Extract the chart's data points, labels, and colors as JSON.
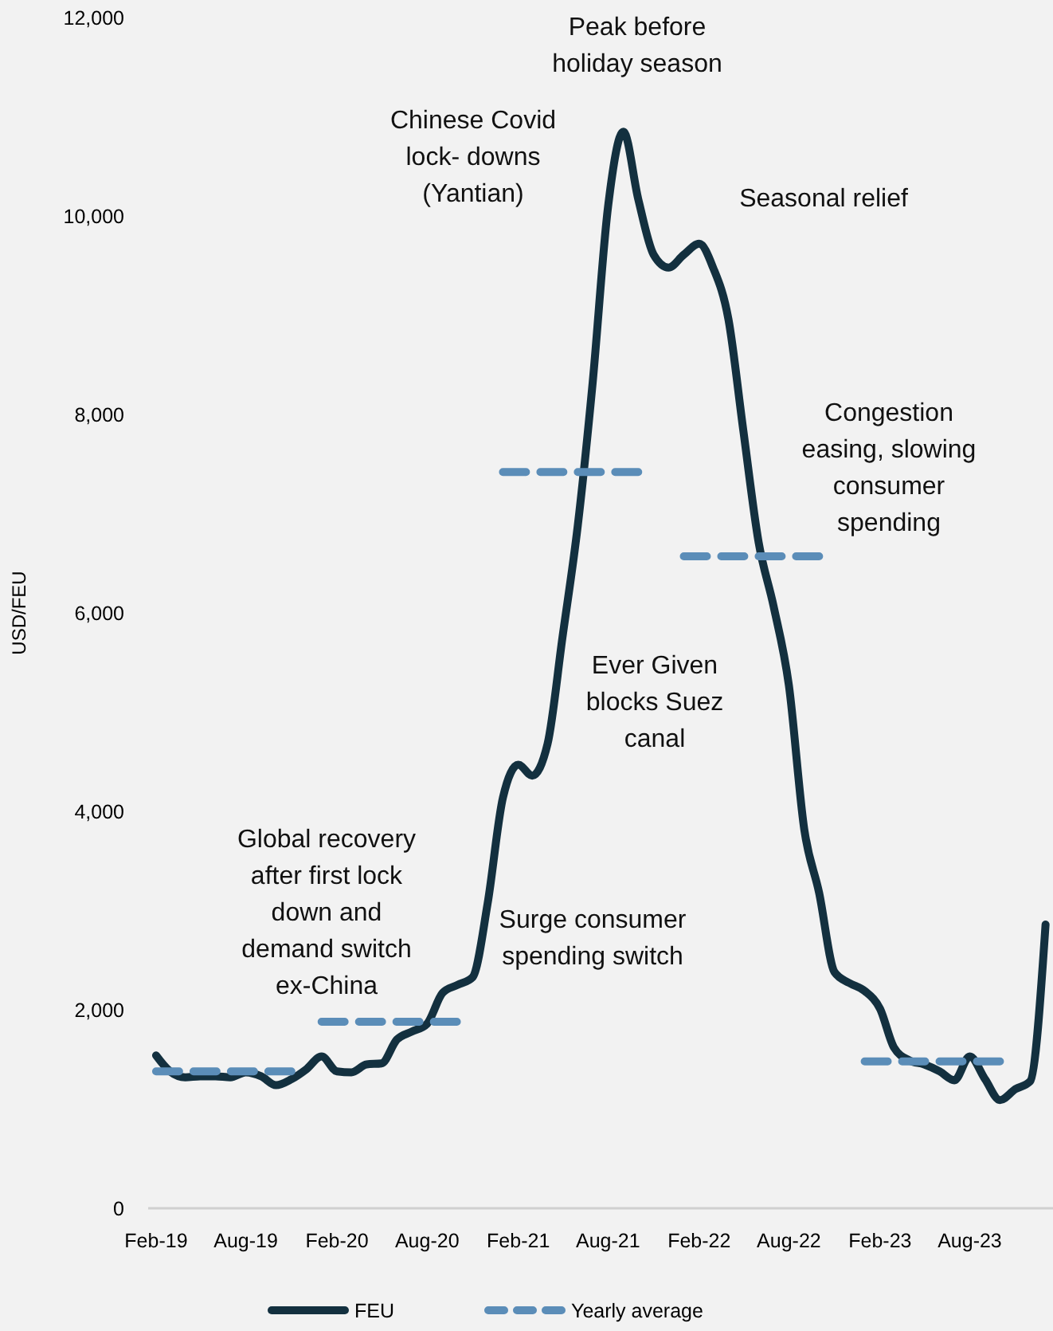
{
  "chart_data": {
    "type": "line",
    "ylabel": "USD/FEU",
    "xlim": [
      "2019-01-16",
      "2024-01-16"
    ],
    "xticks": [
      {
        "value": "2019-02",
        "label": "Feb-19"
      },
      {
        "value": "2019-08",
        "label": "Aug-19"
      },
      {
        "value": "2020-02",
        "label": "Feb-20"
      },
      {
        "value": "2020-08",
        "label": "Aug-20"
      },
      {
        "value": "2021-02",
        "label": "Feb-21"
      },
      {
        "value": "2021-08",
        "label": "Aug-21"
      },
      {
        "value": "2022-02",
        "label": "Feb-22"
      },
      {
        "value": "2022-08",
        "label": "Aug-22"
      },
      {
        "value": "2023-02",
        "label": "Feb-23"
      },
      {
        "value": "2023-08",
        "label": "Aug-23"
      }
    ],
    "ylim": [
      0,
      12000
    ],
    "yticks": [
      0,
      {
        "value": 2000,
        "label": "2,000"
      },
      {
        "value": 4000,
        "label": "4,000"
      },
      {
        "value": 6000,
        "label": "6,000"
      },
      {
        "value": 8000,
        "label": "8,000"
      },
      {
        "value": 10000,
        "label": "10,000"
      },
      {
        "value": 12000,
        "label": "12,000"
      }
    ],
    "x": [
      "2019-02",
      "2019-03",
      "2019-04",
      "2019-05",
      "2019-06",
      "2019-07",
      "2019-08",
      "2019-09",
      "2019-10",
      "2019-11",
      "2019-12",
      "2020-01",
      "2020-02",
      "2020-03",
      "2020-04",
      "2020-05",
      "2020-06",
      "2020-07",
      "2020-08",
      "2020-09",
      "2020-10",
      "2020-11",
      "2020-12",
      "2021-01",
      "2021-02",
      "2021-03",
      "2021-04",
      "2021-05",
      "2021-06",
      "2021-07",
      "2021-08",
      "2021-09",
      "2021-10",
      "2021-11",
      "2021-12",
      "2022-01",
      "2022-02",
      "2022-03",
      "2022-04",
      "2022-05",
      "2022-06",
      "2022-07",
      "2022-08",
      "2022-09",
      "2022-10",
      "2022-11",
      "2022-12",
      "2023-01",
      "2023-02",
      "2023-03",
      "2023-04",
      "2023-05",
      "2023-06",
      "2023-07",
      "2023-08",
      "2023-09",
      "2023-10",
      "2023-11",
      "2023-12",
      "2024-01"
    ],
    "series": [
      {
        "name": "FEU",
        "color": "#13303f",
        "line_style": "solid",
        "values": [
          1540,
          1380,
          1320,
          1330,
          1330,
          1320,
          1370,
          1330,
          1240,
          1300,
          1400,
          1530,
          1380,
          1370,
          1450,
          1460,
          1700,
          1780,
          1860,
          2170,
          2250,
          2330,
          3070,
          4140,
          4470,
          4360,
          4680,
          5750,
          6880,
          8320,
          10090,
          10850,
          10170,
          9610,
          9480,
          9610,
          9720,
          9480,
          8960,
          7840,
          6710,
          6070,
          5270,
          3820,
          3180,
          2380,
          2270,
          2190,
          2010,
          1620,
          1490,
          1450,
          1380,
          1290,
          1530,
          1300,
          1090,
          1200,
          1280,
          2860
        ]
      },
      {
        "name": "Yearly average",
        "color": "#5b8db8",
        "line_style": "dashed",
        "x": [
          "2019-02",
          "2019-11",
          "2019-12",
          "2020-01",
          "2020-10",
          "2020-11",
          "2021-01",
          "2021-10",
          "2021-11",
          "2022-01",
          "2022-10",
          "2022-11",
          "2023-01",
          "2023-10"
        ],
        "values": [
          1380,
          1380,
          null,
          1880,
          1880,
          null,
          7420,
          7420,
          null,
          6570,
          6570,
          null,
          1480,
          1480
        ]
      }
    ],
    "annotations": [
      "Peak before\nholiday season",
      "Chinese Covid\nlock- downs\n(Yantian)",
      "Seasonal relief",
      "Congestion\neasing, slowing\nconsumer\nspending",
      "Ever Given\nblocks Suez\ncanal",
      "Global recovery\nafter first lock\ndown and\ndemand switch\nex-China",
      "Surge consumer\nspending switch"
    ],
    "grid": false,
    "legend": "bottom",
    "marker": "none"
  }
}
